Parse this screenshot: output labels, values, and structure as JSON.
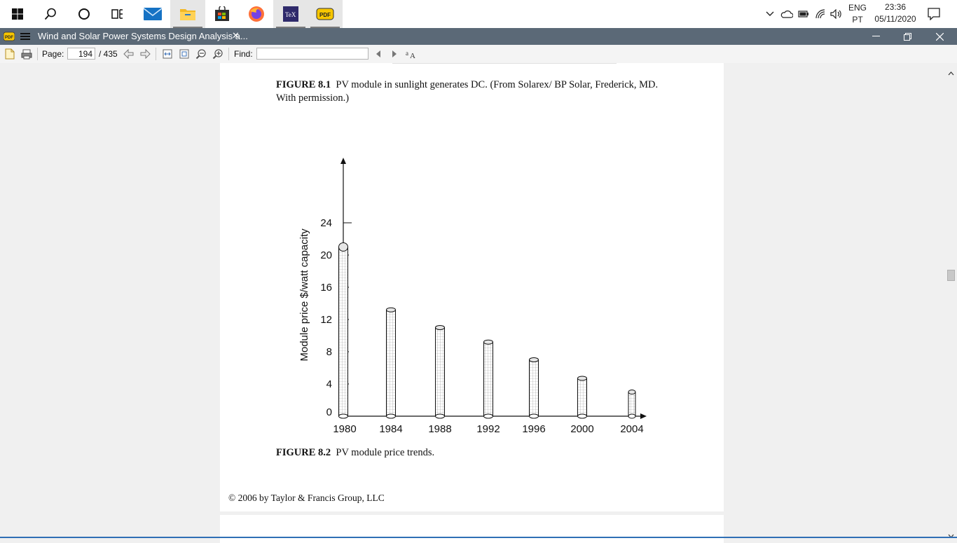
{
  "taskbar": {
    "icons": [
      "windows-start-icon",
      "search-icon",
      "cortana-icon",
      "task-view-icon",
      "mail-icon",
      "file-explorer-icon",
      "store-icon",
      "firefox-icon",
      "tex-icon",
      "pdf-reader-icon"
    ],
    "tray_lang_1": "ENG",
    "tray_lang_2": "PT",
    "time": "23:36",
    "date": "05/11/2020"
  },
  "window": {
    "title": "Wind and Solar Power Systems Design Analysis a...",
    "close_tab": "✕"
  },
  "toolbar": {
    "page_label": "Page:",
    "page_value": "194",
    "page_total": "/ 435",
    "find_label": "Find:",
    "find_value": ""
  },
  "document": {
    "fig1_label": "FIGURE 8.1",
    "fig1_text": "PV module in sunlight generates DC. (From Solarex/ BP Solar, Frederick, MD.",
    "fig1_text2": "With permission.)",
    "fig2_label": "FIGURE 8.2",
    "fig2_text": "PV module price trends.",
    "copyright": "© 2006 by Taylor & Francis Group, LLC"
  },
  "chart_data": {
    "type": "bar",
    "categories": [
      "1980",
      "1984",
      "1988",
      "1992",
      "1996",
      "2000",
      "2004"
    ],
    "values": [
      21,
      13.2,
      11,
      9.2,
      7,
      4.7,
      3
    ],
    "yticks": [
      0,
      4,
      8,
      12,
      16,
      20,
      24
    ],
    "ylabel": "Module price $/watt capacity",
    "xlabel": "",
    "title": "",
    "ylim": [
      0,
      24
    ],
    "grid": false
  }
}
